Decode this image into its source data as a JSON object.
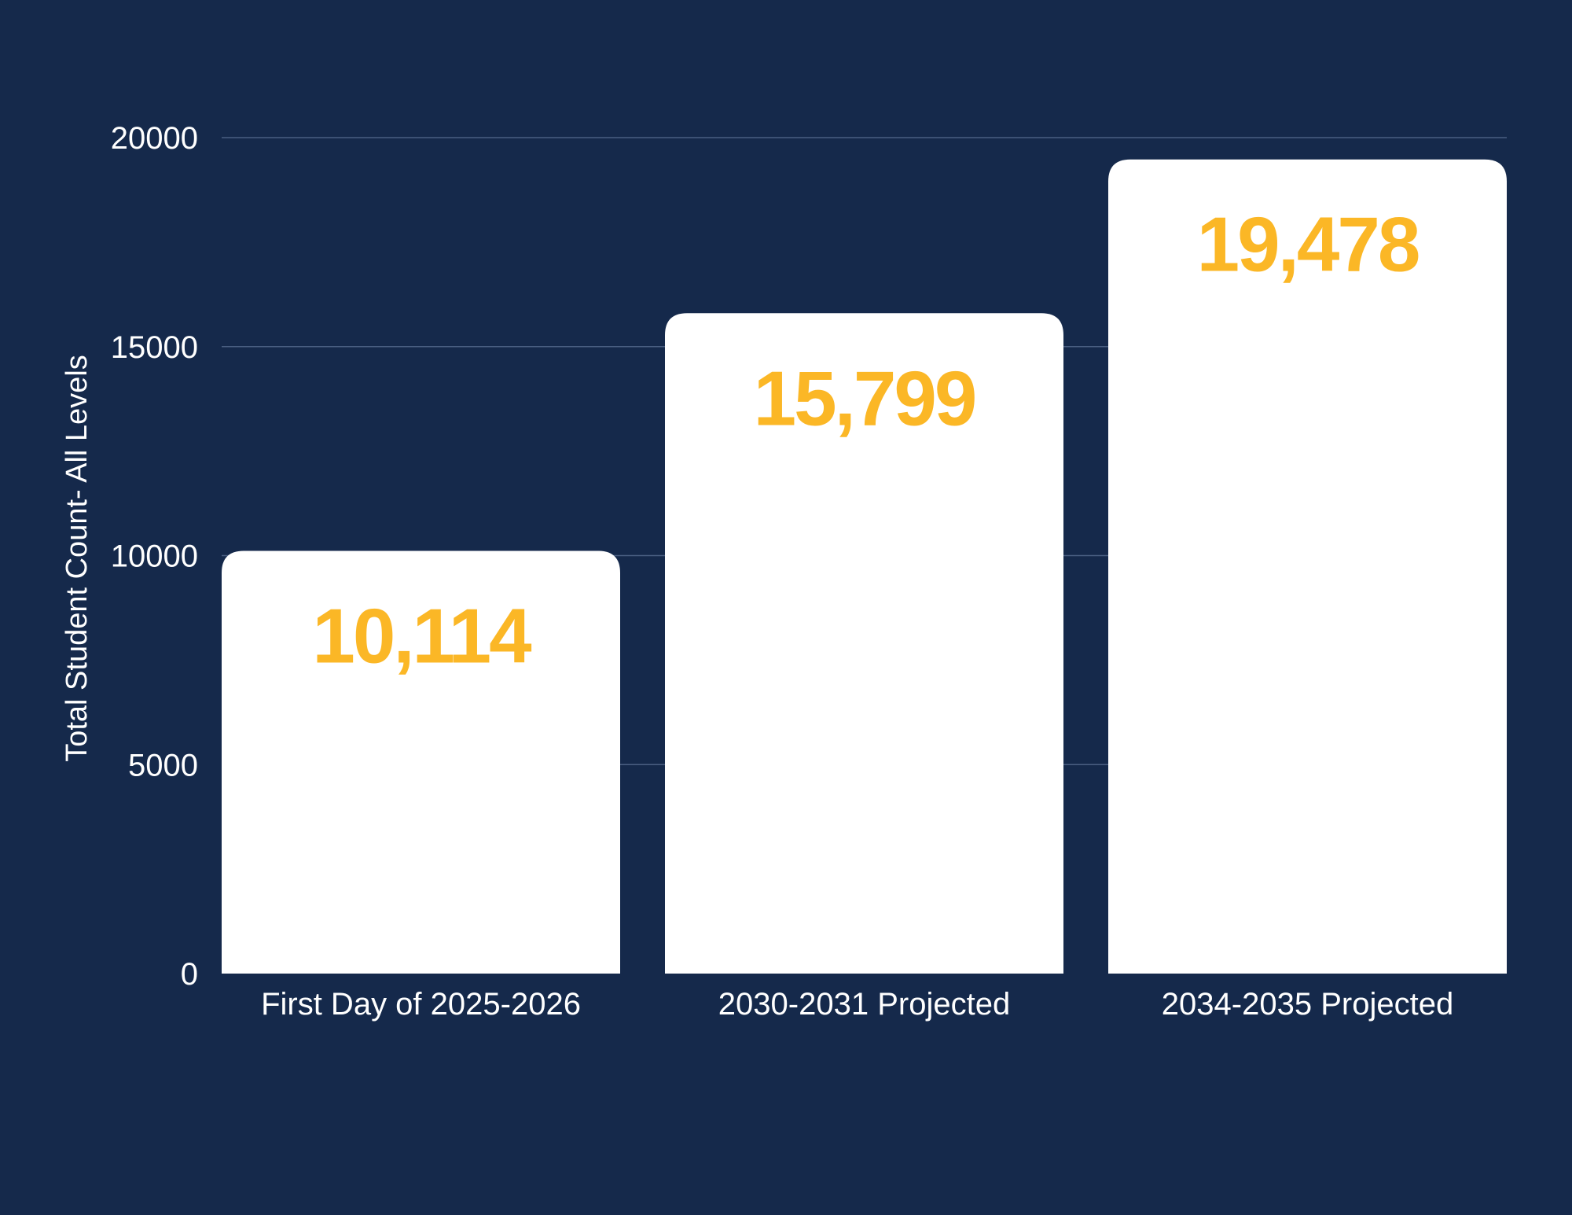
{
  "colors": {
    "background": "#15294b",
    "bar": "#ffffff",
    "value_label": "#fbb726",
    "text": "#ffffff",
    "gridline": "#4a5f82"
  },
  "chart_data": {
    "type": "bar",
    "categories": [
      "First Day of 2025-2026",
      "2030-2031 Projected",
      "2034-2035 Projected"
    ],
    "values": [
      10114,
      15799,
      19478
    ],
    "value_labels": [
      "10,114",
      "15,799",
      "19,478"
    ],
    "title": "",
    "xlabel": "",
    "ylabel": "Total Student Count- All Levels",
    "ylim": [
      0,
      20000
    ],
    "yticks": [
      0,
      5000,
      10000,
      15000,
      20000
    ],
    "grid": true,
    "legend": "none"
  }
}
